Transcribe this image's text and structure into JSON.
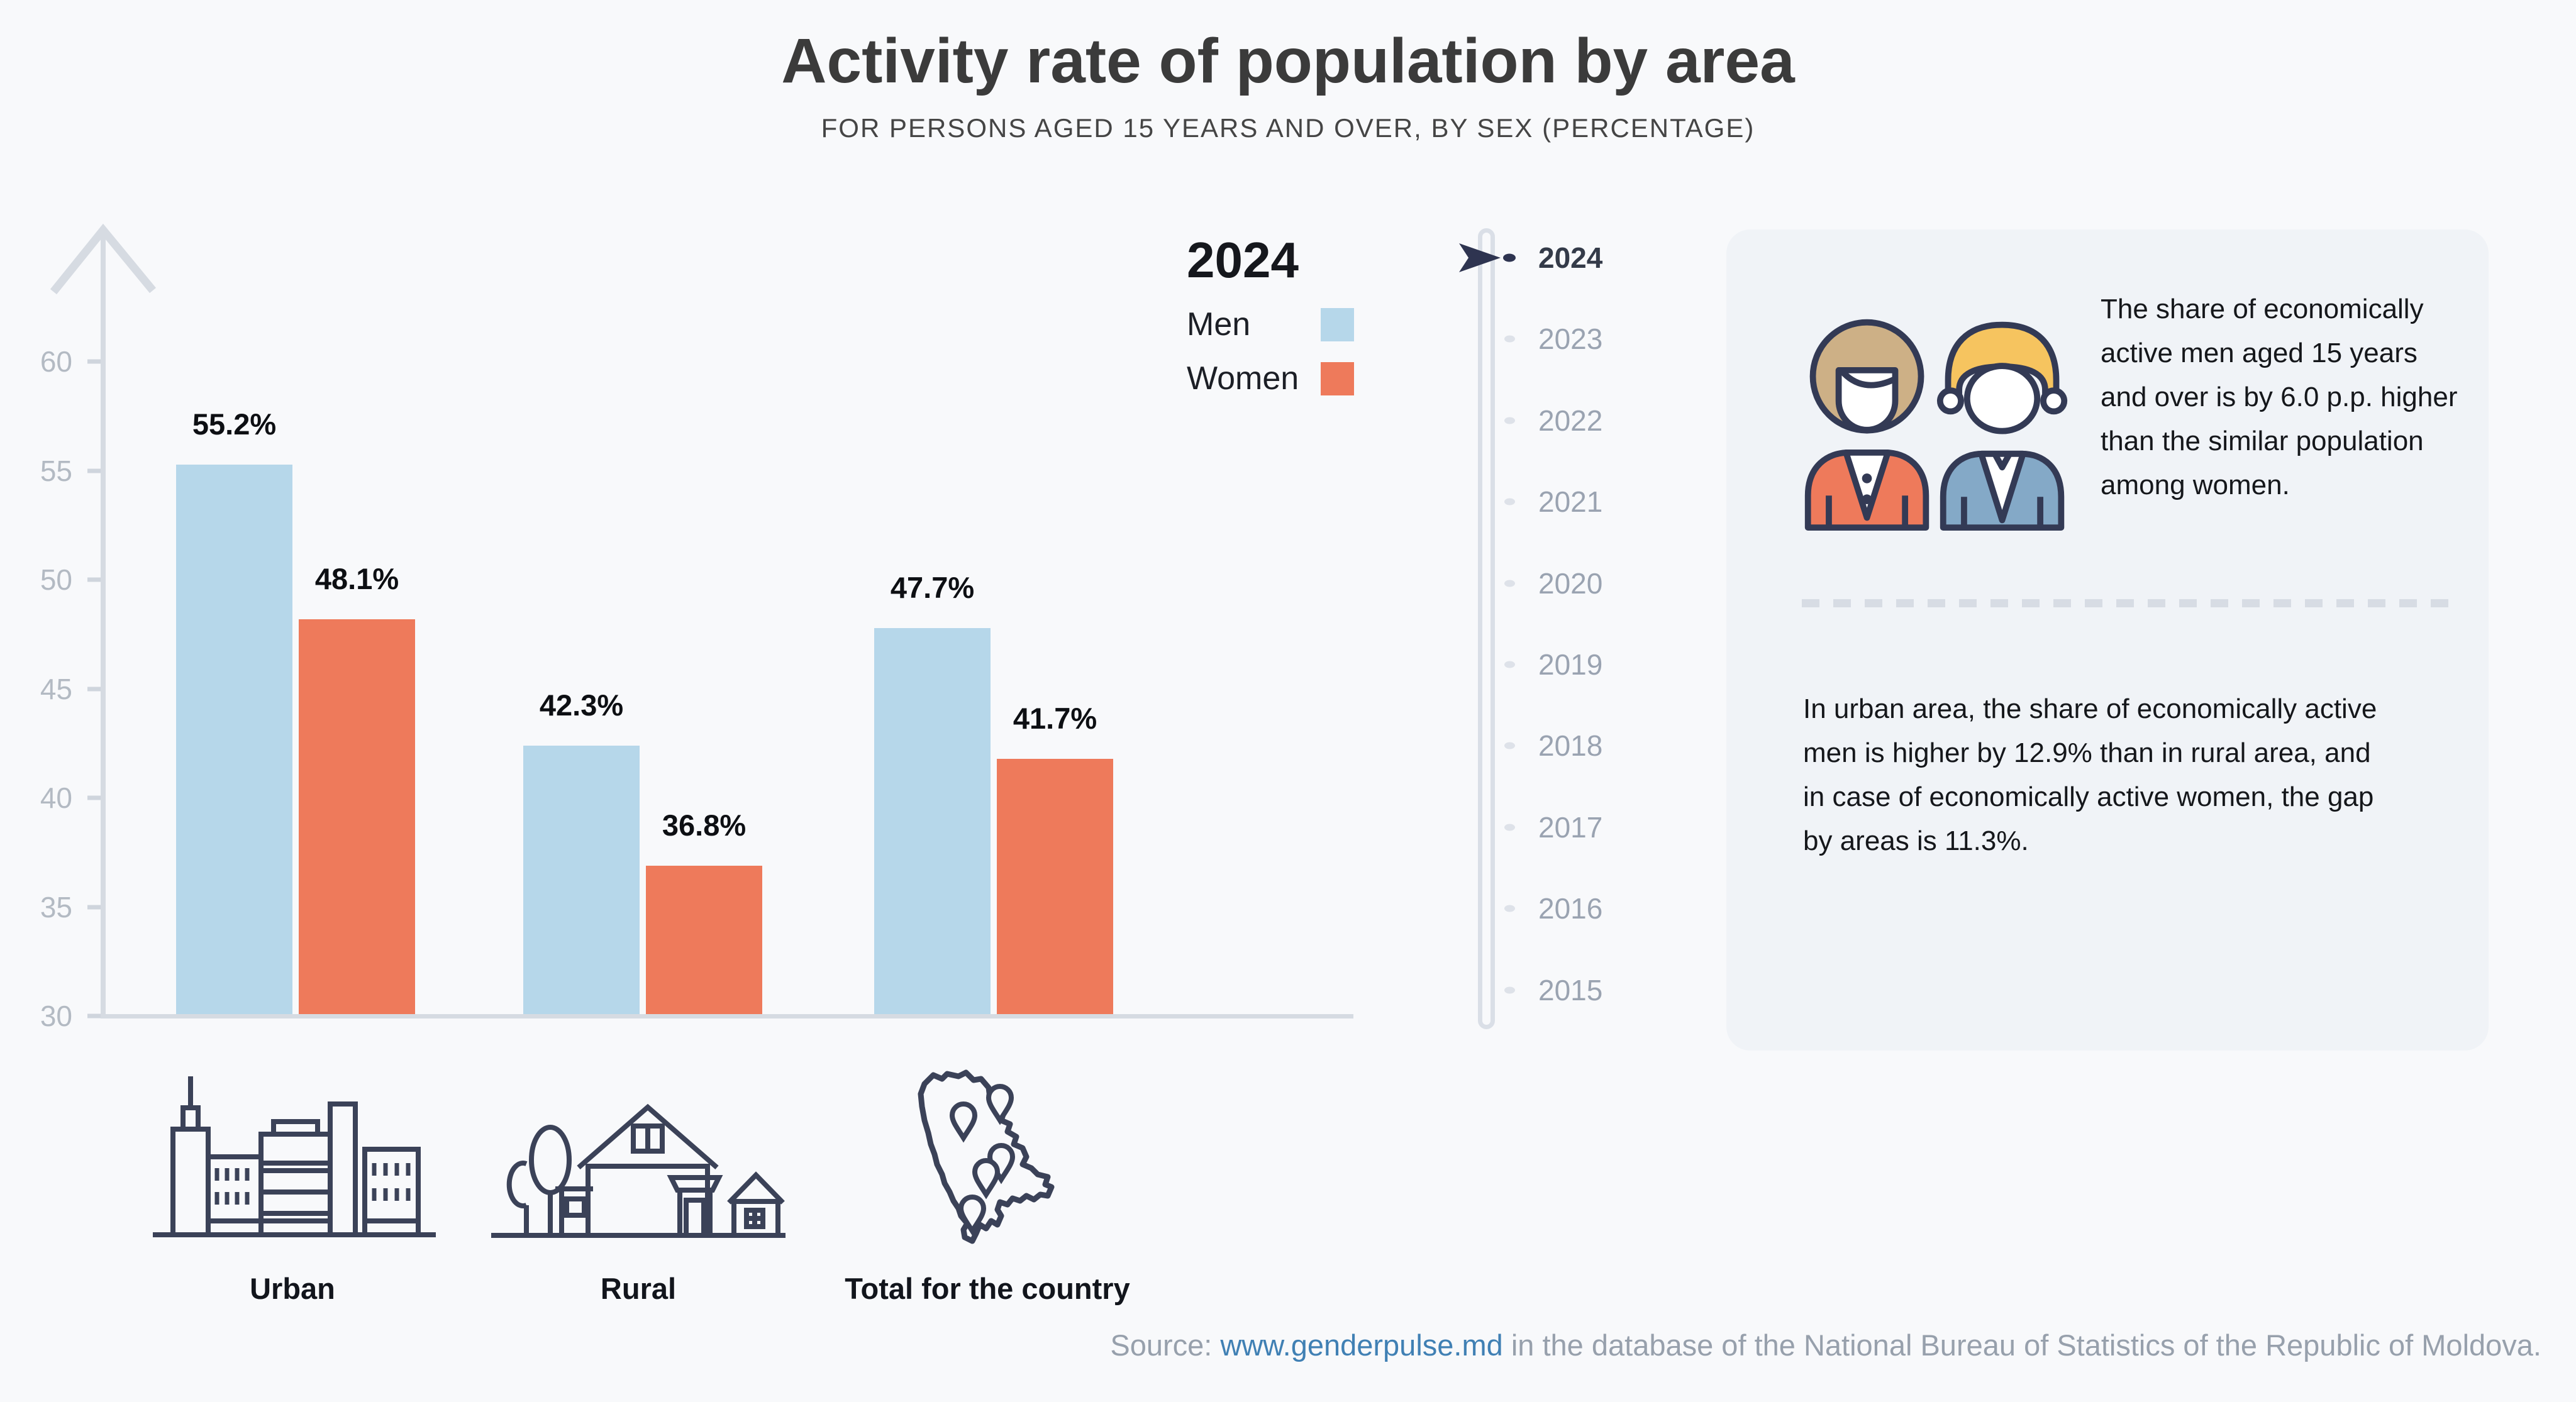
{
  "page": {
    "title": "Activity rate of population by area",
    "subtitle": "FOR PERSONS AGED 15 YEARS AND OVER, BY SEX (PERCENTAGE)",
    "source_prefix": "Source: ",
    "source_link": "www.genderpulse.md",
    "source_suffix": " in the database of the National Bureau of Statistics of the Republic of Moldova."
  },
  "legend": {
    "year": "2024",
    "items": [
      {
        "label": "Men",
        "color": "#b6d7ea"
      },
      {
        "label": "Women",
        "color": "#ee7a5b"
      }
    ]
  },
  "chart_data": {
    "type": "bar",
    "title": "Activity rate of population by area",
    "subtitle": "FOR PERSONS AGED 15 YEARS AND OVER, BY SEX (PERCENTAGE)",
    "year": "2024",
    "categories": [
      "Urban",
      "Rural",
      "Total for the country"
    ],
    "series": [
      {
        "name": "Men",
        "color": "#b6d7ea",
        "values": [
          55.2,
          42.3,
          47.7
        ]
      },
      {
        "name": "Women",
        "color": "#ee7a5b",
        "values": [
          48.1,
          36.8,
          41.7
        ]
      }
    ],
    "value_suffix": "%",
    "ylabel": "",
    "xlabel": "",
    "ylim": [
      30,
      60
    ],
    "yticks": [
      30,
      35,
      40,
      45,
      50,
      55,
      60
    ],
    "grid": false,
    "legend_position": "top-right"
  },
  "timeline": {
    "years": [
      "2024",
      "2023",
      "2022",
      "2021",
      "2020",
      "2019",
      "2018",
      "2017",
      "2016",
      "2015"
    ],
    "selected": "2024"
  },
  "insights": {
    "paragraph1": "The share of economically active men aged 15 years and over is by 6.0 p.p. higher than the similar population among women.",
    "paragraph2": "In urban area, the share of economically active men is higher by 12.9% than in rural area, and in case of economically active women, the gap by areas is 11.3%."
  },
  "icons": {
    "urban": "city-buildings-icon",
    "rural": "house-with-tree-icon",
    "total": "moldova-map-with-pins-icon",
    "panel": "woman-and-man-avatars-icon",
    "timeline_cursor": "right-arrow-cursor-icon",
    "y_axis": "up-arrow-axis-icon"
  },
  "colors": {
    "page_bg": "#f8f9fb",
    "panel_bg": "#f0f3f7",
    "men_bar": "#b6d7ea",
    "women_bar": "#ee7a5b",
    "axis_gray": "#d6dbe2",
    "tick_text": "#b3bac3",
    "icon_stroke": "#3b4258",
    "year_selected": "#343b49",
    "year_unselected": "#9aa3b1",
    "source_text": "#97a0ac",
    "link_blue": "#4080b4"
  }
}
